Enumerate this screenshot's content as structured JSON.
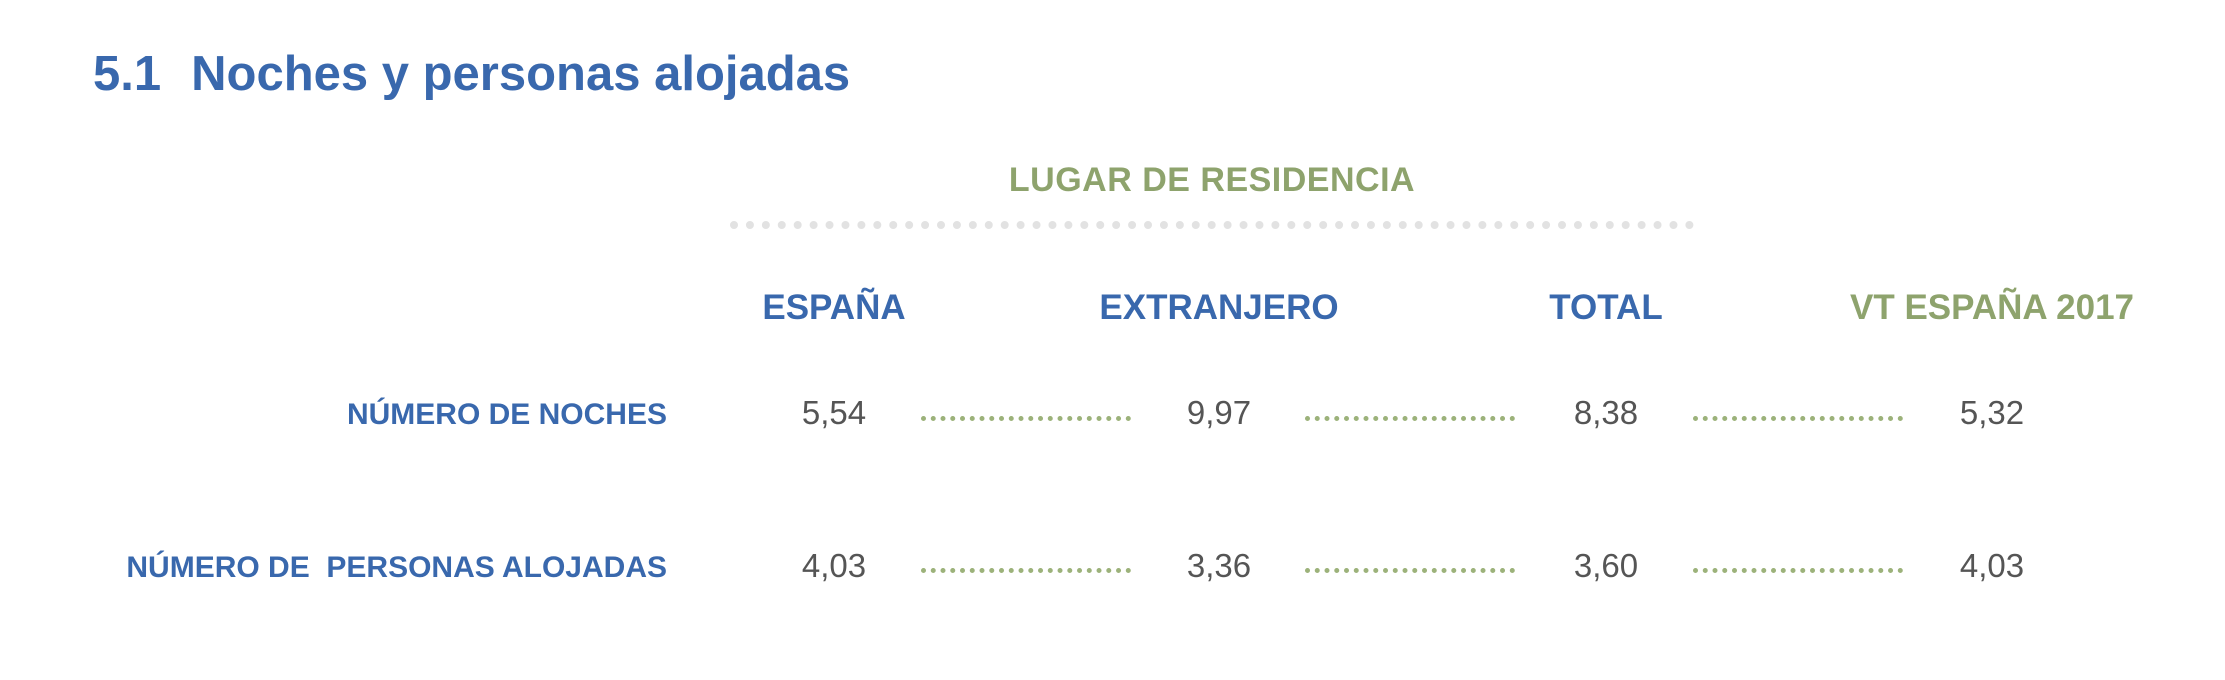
{
  "section": {
    "number": "5.1",
    "title": "Noches y personas alojadas"
  },
  "group_header": "LUGAR DE RESIDENCIA",
  "columns": [
    "ESPAÑA",
    "EXTRANJERO",
    "TOTAL",
    "VT ESPAÑA 2017"
  ],
  "rows": [
    {
      "label": "NÚMERO DE NOCHES",
      "values": [
        "5,54",
        "9,97",
        "8,38",
        "5,32"
      ]
    },
    {
      "label": "NÚMERO DE  PERSONAS ALOJADAS",
      "values": [
        "4,03",
        "3,36",
        "3,60",
        "4,03"
      ]
    }
  ],
  "colors": {
    "blue": "#3968ad",
    "green": "#8ea36d",
    "value_gray": "#555555"
  }
}
